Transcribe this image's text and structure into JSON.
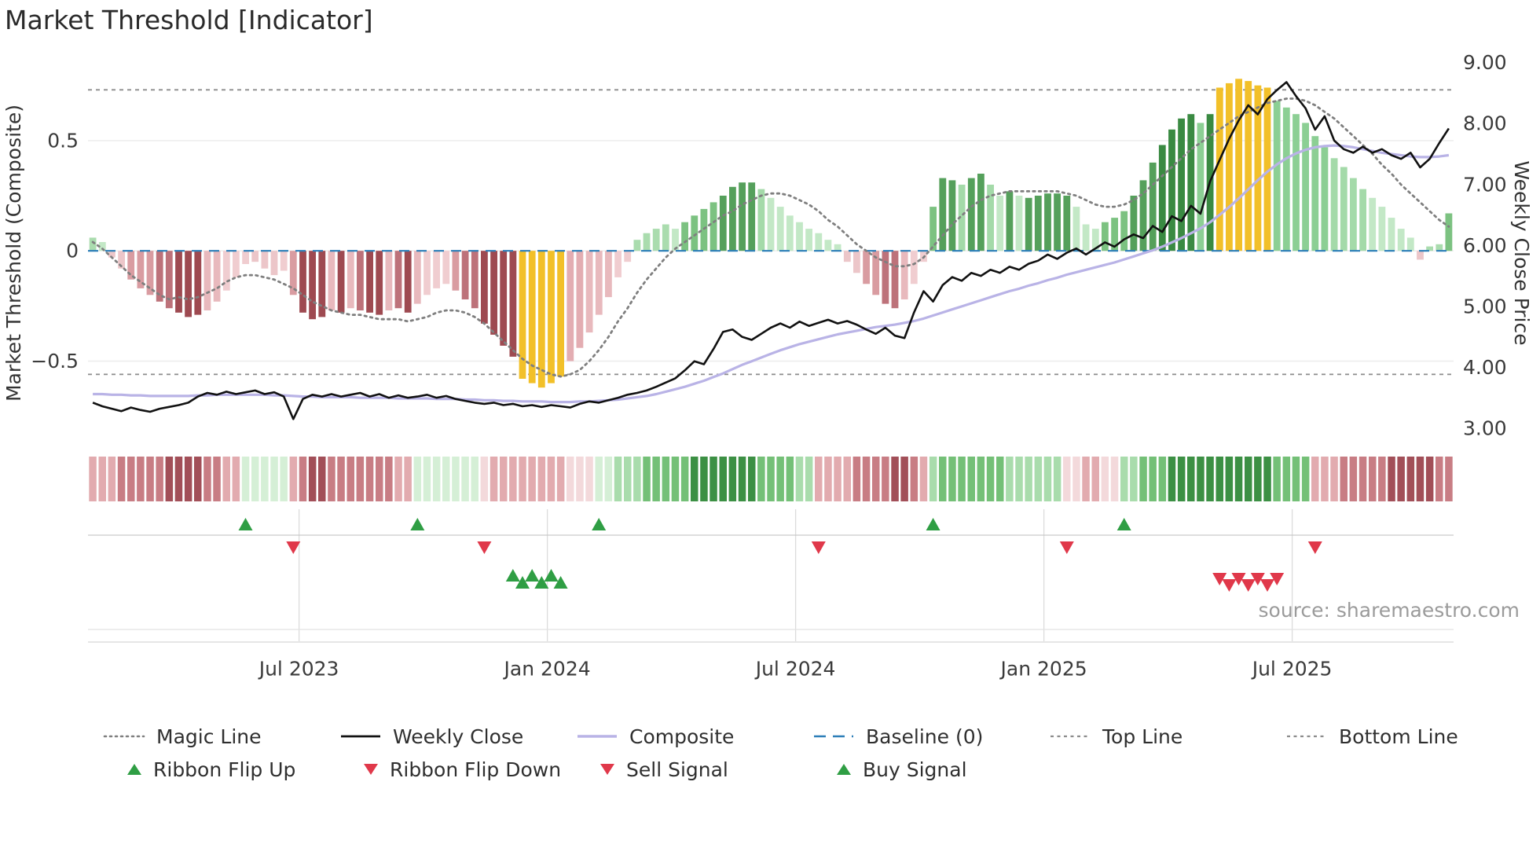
{
  "title": "Market Threshold [Indicator]",
  "source_text": "source: sharemaestro.com",
  "axes": {
    "left_label": "Market Threshold (Composite)",
    "right_label": "Weekly Close Price",
    "left_ticks": [
      {
        "v": 0.5,
        "label": "0.5"
      },
      {
        "v": 0,
        "label": "0"
      },
      {
        "v": -0.5,
        "label": "−0.5"
      }
    ],
    "right_ticks": [
      {
        "v": 9,
        "label": "9.00"
      },
      {
        "v": 8,
        "label": "8.00"
      },
      {
        "v": 7,
        "label": "7.00"
      },
      {
        "v": 6,
        "label": "6.00"
      },
      {
        "v": 5,
        "label": "5.00"
      },
      {
        "v": 4,
        "label": "4.00"
      },
      {
        "v": 3,
        "label": "3.00"
      }
    ],
    "x_ticks": [
      {
        "week": 21.6,
        "label": "Jul 2023"
      },
      {
        "week": 47.6,
        "label": "Jan 2024"
      },
      {
        "week": 73.6,
        "label": "Jul 2024"
      },
      {
        "week": 99.6,
        "label": "Jan 2025"
      },
      {
        "week": 125.6,
        "label": "Jul 2025"
      }
    ]
  },
  "colors": {
    "magic_line": "#7f7f7f",
    "weekly_close": "#111111",
    "composite": "#b9b3e6",
    "baseline": "#2d7fb8",
    "band_lines": "#8c8c8c",
    "gold": "#f2c029",
    "marker_green": "#2f9e44",
    "marker_red": "#e0384a"
  },
  "legend": {
    "row1": [
      {
        "label": "Magic Line",
        "swatch": "dotted-gray-line"
      },
      {
        "label": "Weekly Close",
        "swatch": "solid-black-line"
      },
      {
        "label": "Composite",
        "swatch": "solid-lavender-line"
      },
      {
        "label": "Baseline (0)",
        "swatch": "dashed-blue-line"
      },
      {
        "label": "Top Line",
        "swatch": "dashed-gray-line"
      },
      {
        "label": "Bottom Line",
        "swatch": "dashed-gray-line"
      }
    ],
    "row2": [
      {
        "label": "Ribbon Flip Up",
        "swatch": "green-up-triangle"
      },
      {
        "label": "Ribbon Flip Down",
        "swatch": "red-down-triangle"
      },
      {
        "label": "Sell Signal",
        "swatch": "red-down-triangle"
      },
      {
        "label": "Buy Signal",
        "swatch": "green-up-triangle"
      }
    ]
  },
  "chart_data": {
    "type": "bar",
    "description": "Weekly market-threshold histogram (left axis) with magic line, plus weekly close and composite price lines (right axis), ribbon heat strip and trade signal markers",
    "n_weeks": 143,
    "x_range": [
      "Feb 2023",
      "Oct 2025"
    ],
    "left_ylim": [
      -0.89,
      0.87
    ],
    "right_ylim": [
      2.69,
      9.06
    ],
    "baseline": 0,
    "top_line": 0.73,
    "bottom_line": -0.56,
    "threshold": [
      0.06,
      0.04,
      -0.03,
      -0.08,
      -0.13,
      -0.17,
      -0.2,
      -0.23,
      -0.26,
      -0.28,
      -0.3,
      -0.29,
      -0.27,
      -0.23,
      -0.18,
      -0.12,
      -0.06,
      -0.05,
      -0.08,
      -0.11,
      -0.09,
      -0.2,
      -0.28,
      -0.31,
      -0.3,
      -0.27,
      -0.28,
      -0.26,
      -0.27,
      -0.28,
      -0.29,
      -0.27,
      -0.26,
      -0.28,
      -0.24,
      -0.2,
      -0.17,
      -0.15,
      -0.18,
      -0.22,
      -0.26,
      -0.33,
      -0.38,
      -0.43,
      -0.48,
      -0.58,
      -0.6,
      -0.62,
      -0.6,
      -0.57,
      -0.5,
      -0.44,
      -0.37,
      -0.29,
      -0.21,
      -0.12,
      -0.05,
      0.05,
      0.08,
      0.1,
      0.12,
      0.1,
      0.13,
      0.16,
      0.19,
      0.22,
      0.25,
      0.29,
      0.31,
      0.31,
      0.28,
      0.24,
      0.2,
      0.16,
      0.13,
      0.1,
      0.08,
      0.05,
      0.03,
      -0.05,
      -0.1,
      -0.15,
      -0.2,
      -0.24,
      -0.26,
      -0.22,
      -0.15,
      -0.05,
      0.2,
      0.33,
      0.32,
      0.3,
      0.33,
      0.35,
      0.3,
      0.25,
      0.27,
      0.25,
      0.24,
      0.25,
      0.26,
      0.26,
      0.25,
      0.2,
      0.12,
      0.1,
      0.13,
      0.15,
      0.18,
      0.25,
      0.32,
      0.4,
      0.48,
      0.55,
      0.6,
      0.62,
      0.58,
      0.62,
      0.74,
      0.76,
      0.78,
      0.77,
      0.75,
      0.74,
      0.68,
      0.65,
      0.62,
      0.58,
      0.52,
      0.47,
      0.42,
      0.38,
      0.33,
      0.28,
      0.24,
      0.2,
      0.15,
      0.1,
      0.06,
      -0.04,
      0.02,
      0.03,
      0.17
    ],
    "magic_line": [
      0.04,
      0.01,
      -0.03,
      -0.07,
      -0.11,
      -0.14,
      -0.17,
      -0.2,
      -0.22,
      -0.21,
      -0.22,
      -0.21,
      -0.19,
      -0.17,
      -0.14,
      -0.12,
      -0.11,
      -0.11,
      -0.12,
      -0.13,
      -0.15,
      -0.17,
      -0.2,
      -0.23,
      -0.25,
      -0.27,
      -0.28,
      -0.29,
      -0.29,
      -0.3,
      -0.31,
      -0.31,
      -0.31,
      -0.32,
      -0.31,
      -0.3,
      -0.28,
      -0.27,
      -0.27,
      -0.28,
      -0.3,
      -0.33,
      -0.37,
      -0.41,
      -0.45,
      -0.49,
      -0.52,
      -0.54,
      -0.56,
      -0.57,
      -0.56,
      -0.54,
      -0.5,
      -0.45,
      -0.39,
      -0.32,
      -0.26,
      -0.19,
      -0.13,
      -0.08,
      -0.03,
      0.01,
      0.04,
      0.07,
      0.1,
      0.13,
      0.16,
      0.18,
      0.21,
      0.23,
      0.25,
      0.26,
      0.26,
      0.25,
      0.23,
      0.21,
      0.18,
      0.14,
      0.11,
      0.07,
      0.03,
      0,
      -0.03,
      -0.05,
      -0.07,
      -0.07,
      -0.06,
      -0.03,
      0.02,
      0.07,
      0.12,
      0.16,
      0.2,
      0.23,
      0.25,
      0.26,
      0.27,
      0.27,
      0.27,
      0.27,
      0.27,
      0.27,
      0.26,
      0.25,
      0.23,
      0.21,
      0.2,
      0.2,
      0.21,
      0.23,
      0.26,
      0.3,
      0.34,
      0.38,
      0.42,
      0.46,
      0.49,
      0.52,
      0.55,
      0.58,
      0.61,
      0.63,
      0.65,
      0.67,
      0.68,
      0.69,
      0.69,
      0.68,
      0.66,
      0.63,
      0.6,
      0.56,
      0.52,
      0.48,
      0.44,
      0.39,
      0.35,
      0.3,
      0.26,
      0.22,
      0.18,
      0.14,
      0.11
    ],
    "weekly_close": [
      3.42,
      3.36,
      3.32,
      3.28,
      3.34,
      3.3,
      3.27,
      3.32,
      3.35,
      3.38,
      3.42,
      3.52,
      3.58,
      3.55,
      3.6,
      3.56,
      3.59,
      3.62,
      3.56,
      3.59,
      3.52,
      3.15,
      3.48,
      3.55,
      3.52,
      3.56,
      3.52,
      3.55,
      3.58,
      3.52,
      3.56,
      3.5,
      3.54,
      3.5,
      3.52,
      3.55,
      3.5,
      3.53,
      3.48,
      3.45,
      3.42,
      3.4,
      3.42,
      3.38,
      3.4,
      3.36,
      3.38,
      3.35,
      3.38,
      3.36,
      3.34,
      3.4,
      3.44,
      3.42,
      3.46,
      3.5,
      3.55,
      3.58,
      3.62,
      3.68,
      3.75,
      3.82,
      3.95,
      4.1,
      4.05,
      4.3,
      4.58,
      4.62,
      4.5,
      4.45,
      4.55,
      4.65,
      4.72,
      4.65,
      4.75,
      4.68,
      4.73,
      4.78,
      4.72,
      4.76,
      4.7,
      4.62,
      4.55,
      4.65,
      4.52,
      4.48,
      4.9,
      5.25,
      5.08,
      5.35,
      5.48,
      5.42,
      5.55,
      5.5,
      5.6,
      5.55,
      5.65,
      5.6,
      5.7,
      5.75,
      5.85,
      5.78,
      5.88,
      5.95,
      5.85,
      5.95,
      6.05,
      5.98,
      6.1,
      6.18,
      6.12,
      6.32,
      6.22,
      6.48,
      6.4,
      6.65,
      6.52,
      7.05,
      7.4,
      7.75,
      8.05,
      8.3,
      8.15,
      8.4,
      8.55,
      8.68,
      8.45,
      8.25,
      7.9,
      8.12,
      7.72,
      7.58,
      7.52,
      7.62,
      7.52,
      7.58,
      7.48,
      7.42,
      7.52,
      7.28,
      7.42,
      7.68,
      7.92
    ],
    "composite": [
      3.56,
      3.56,
      3.55,
      3.55,
      3.54,
      3.54,
      3.53,
      3.53,
      3.53,
      3.53,
      3.53,
      3.54,
      3.54,
      3.55,
      3.55,
      3.55,
      3.55,
      3.55,
      3.55,
      3.54,
      3.54,
      3.53,
      3.52,
      3.52,
      3.51,
      3.51,
      3.51,
      3.51,
      3.5,
      3.5,
      3.5,
      3.5,
      3.49,
      3.49,
      3.49,
      3.49,
      3.48,
      3.48,
      3.48,
      3.47,
      3.47,
      3.46,
      3.46,
      3.45,
      3.45,
      3.44,
      3.44,
      3.44,
      3.43,
      3.43,
      3.43,
      3.44,
      3.44,
      3.45,
      3.46,
      3.47,
      3.49,
      3.51,
      3.53,
      3.56,
      3.6,
      3.64,
      3.68,
      3.73,
      3.78,
      3.84,
      3.9,
      3.97,
      4.04,
      4.1,
      4.16,
      4.22,
      4.28,
      4.33,
      4.38,
      4.42,
      4.46,
      4.5,
      4.54,
      4.57,
      4.6,
      4.63,
      4.66,
      4.68,
      4.7,
      4.73,
      4.76,
      4.8,
      4.85,
      4.9,
      4.95,
      5.0,
      5.05,
      5.1,
      5.15,
      5.2,
      5.25,
      5.29,
      5.34,
      5.38,
      5.43,
      5.47,
      5.52,
      5.56,
      5.6,
      5.64,
      5.68,
      5.72,
      5.77,
      5.82,
      5.87,
      5.92,
      5.98,
      6.05,
      6.12,
      6.2,
      6.28,
      6.38,
      6.5,
      6.63,
      6.77,
      6.92,
      7.07,
      7.21,
      7.33,
      7.43,
      7.51,
      7.57,
      7.61,
      7.63,
      7.64,
      7.63,
      7.61,
      7.58,
      7.55,
      7.52,
      7.5,
      7.48,
      7.46,
      7.45,
      7.45,
      7.46,
      7.48
    ],
    "ribbon": [
      -2,
      -2,
      -2,
      -3,
      -3,
      -3,
      -3,
      -3,
      -4,
      -4,
      -4,
      -4,
      -3,
      -3,
      -2,
      -2,
      1,
      1,
      1,
      1,
      1,
      -2,
      -3,
      -4,
      -4,
      -3,
      -3,
      -3,
      -3,
      -3,
      -3,
      -3,
      -2,
      -2,
      1,
      1,
      1,
      1,
      1,
      1,
      1,
      -1,
      -2,
      -2,
      -2,
      -2,
      -2,
      -2,
      -2,
      -2,
      -1,
      -1,
      -1,
      1,
      1,
      2,
      2,
      2,
      3,
      3,
      3,
      3,
      3,
      4,
      4,
      4,
      4,
      4,
      4,
      4,
      3,
      3,
      3,
      3,
      2,
      2,
      -2,
      -2,
      -2,
      -2,
      -3,
      -3,
      -3,
      -3,
      -4,
      -4,
      -3,
      -2,
      2,
      3,
      3,
      3,
      3,
      3,
      3,
      3,
      2,
      2,
      2,
      2,
      2,
      2,
      -1,
      -1,
      -2,
      -2,
      -1,
      -1,
      2,
      2,
      3,
      3,
      3,
      4,
      4,
      4,
      4,
      4,
      4,
      4,
      4,
      4,
      4,
      4,
      3,
      3,
      3,
      3,
      -2,
      -2,
      -2,
      -3,
      -3,
      -3,
      -3,
      -3,
      -4,
      -4,
      -4,
      -4,
      -4,
      -3,
      -3
    ],
    "signals": {
      "ribbon_flip_up_weeks": [
        16,
        34,
        53,
        88,
        108
      ],
      "ribbon_flip_down_weeks": [
        21,
        41,
        76,
        102,
        128
      ],
      "buy_signal_weeks": [
        44,
        45,
        46,
        47,
        48,
        49
      ],
      "sell_signal_weeks": [
        118,
        119,
        120,
        121,
        122,
        123,
        124
      ]
    },
    "bar_palette": {
      "gold": "#f2c029",
      "pos_rise": [
        "#aadcae",
        "#7cc281",
        "#55a05b",
        "#3a8a42"
      ],
      "pos_fall": [
        "#c3e8c6",
        "#a4daa9",
        "#8ccf94"
      ],
      "neg_fall": [
        "#ecc6c9",
        "#d99ca1",
        "#bd727a",
        "#9e4a51"
      ],
      "neg_rise": [
        "#f0cdd0",
        "#e8b9bd",
        "#e3adb2"
      ]
    },
    "ribbon_palette": {
      "green": [
        "#d5efd6",
        "#a9dcac",
        "#74c077",
        "#3c9044"
      ],
      "red": [
        "#f3d9db",
        "#e2abaf",
        "#c87d84",
        "#a24f58"
      ]
    }
  }
}
